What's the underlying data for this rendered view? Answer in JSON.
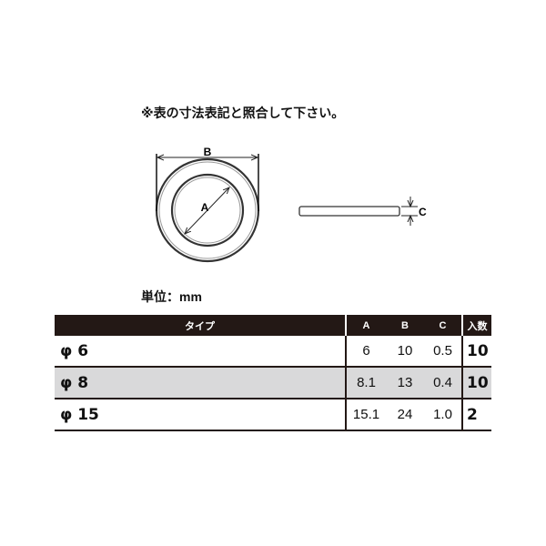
{
  "note": "※表の寸法表記と照合して下さい。",
  "diagram": {
    "label_a": "A",
    "label_b": "B",
    "label_c": "C"
  },
  "unit": "単位：mm",
  "table": {
    "headers": [
      "タイプ",
      "A",
      "B",
      "C",
      "入数"
    ],
    "rows": [
      {
        "type": "φ 6",
        "a": "6",
        "b": "10",
        "c": "0.5",
        "qty": "10",
        "shaded": false
      },
      {
        "type": "φ 8",
        "a": "8.1",
        "b": "13",
        "c": "0.4",
        "qty": "10",
        "shaded": true
      },
      {
        "type": "φ 15",
        "a": "15.1",
        "b": "24",
        "c": "1.0",
        "qty": "2",
        "shaded": false
      }
    ]
  },
  "colors": {
    "header_bg": "#231815",
    "shaded_row": "#d9d9da"
  }
}
